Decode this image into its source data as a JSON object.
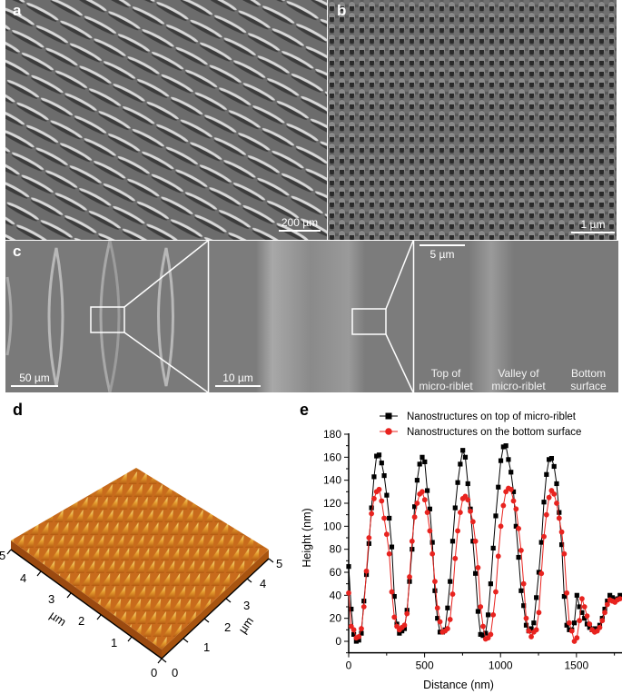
{
  "panels": {
    "a": {
      "label": "a",
      "scale_bar": "200 µm"
    },
    "b": {
      "label": "b",
      "scale_bar": "1 µm"
    },
    "c": {
      "label": "c",
      "sub1_scale_bar": "50 µm",
      "sub2_scale_bar": "10 µm",
      "sub3_scale_bar": "5 µm",
      "region_labels": [
        {
          "line1": "Top of",
          "line2": "micro-riblet"
        },
        {
          "line1": "Valley of",
          "line2": "micro-riblet"
        },
        {
          "line1": "Bottom",
          "line2": "surface"
        }
      ]
    },
    "d": {
      "label": "d",
      "left_axis_ticks": [
        "0",
        "1",
        "2",
        "3",
        "4",
        "5"
      ],
      "right_axis_ticks": [
        "0",
        "1",
        "2",
        "3",
        "4",
        "5"
      ],
      "left_axis_unit": "µm",
      "right_axis_unit": "µm"
    },
    "e": {
      "label": "e"
    }
  },
  "chart_data": {
    "type": "line",
    "title": "",
    "xlabel": "Distance (nm)",
    "ylabel": "Height (nm)",
    "xlim": [
      0,
      1800
    ],
    "ylim": [
      -10,
      180
    ],
    "x_ticks": [
      "0",
      "500",
      "1000",
      "1500"
    ],
    "y_ticks": [
      "0",
      "20",
      "40",
      "60",
      "80",
      "100",
      "120",
      "140",
      "160",
      "180"
    ],
    "grid": false,
    "legend_position": "top",
    "x_step": 16.7,
    "series": [
      {
        "name": "Nanostructures on top of micro-riblet",
        "color": "#000000",
        "marker": "square",
        "values": [
          65,
          28,
          6,
          0,
          1,
          7,
          35,
          58,
          85,
          116,
          143,
          161,
          162,
          155,
          144,
          127,
          107,
          82,
          39,
          15,
          7,
          9,
          11,
          27,
          52,
          80,
          117,
          140,
          154,
          160,
          156,
          131,
          115,
          86,
          44,
          20,
          8,
          8,
          10,
          29,
          52,
          87,
          116,
          138,
          154,
          166,
          160,
          137,
          115,
          87,
          59,
          26,
          6,
          5,
          7,
          23,
          50,
          81,
          109,
          134,
          157,
          169,
          170,
          158,
          147,
          130,
          100,
          73,
          44,
          31,
          14,
          9,
          11,
          16,
          38,
          60,
          86,
          121,
          145,
          158,
          159,
          152,
          137,
          112,
          84,
          39,
          14,
          10,
          10,
          16,
          40,
          30,
          25,
          20,
          15,
          12,
          10,
          11,
          11,
          14,
          20,
          28,
          35,
          40,
          38,
          36,
          37,
          40
        ]
      },
      {
        "name": "Nanostructures on the bottom surface",
        "color": "#e8231f",
        "marker": "circle",
        "values": [
          42,
          13,
          10,
          3,
          4,
          11,
          30,
          61,
          90,
          111,
          124,
          130,
          132,
          122,
          107,
          93,
          76,
          43,
          21,
          13,
          10,
          12,
          14,
          24,
          56,
          87,
          108,
          120,
          128,
          130,
          123,
          112,
          96,
          76,
          52,
          29,
          17,
          8,
          9,
          11,
          19,
          41,
          72,
          96,
          112,
          124,
          126,
          123,
          113,
          104,
          87,
          64,
          30,
          13,
          2,
          3,
          6,
          23,
          43,
          74,
          100,
          118,
          130,
          133,
          132,
          122,
          115,
          98,
          79,
          50,
          20,
          9,
          4,
          8,
          10,
          25,
          59,
          91,
          110,
          125,
          131,
          128,
          120,
          107,
          95,
          76,
          42,
          16,
          9,
          0,
          3,
          18,
          37,
          30,
          22,
          15,
          10,
          8,
          9,
          12,
          18,
          25,
          32,
          36,
          35,
          34,
          36,
          37
        ]
      }
    ]
  }
}
